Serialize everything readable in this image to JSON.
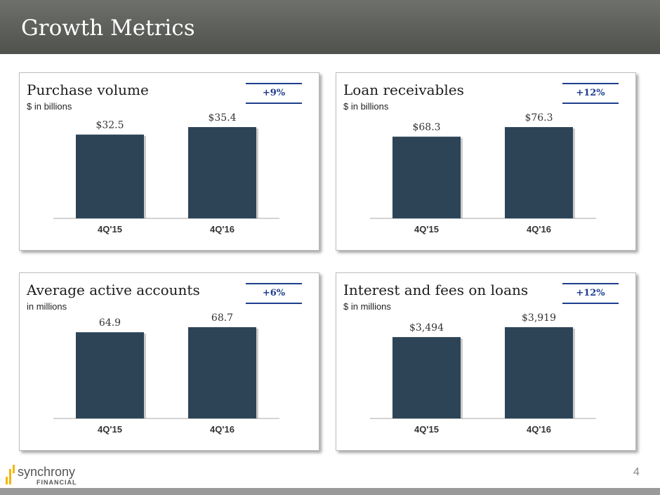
{
  "header": {
    "title": "Growth Metrics"
  },
  "colors": {
    "bar": "#2d4456",
    "badge": "#1f3e8f",
    "axis": "#aaaaaa"
  },
  "footer": {
    "page_number": "4",
    "logo_text": "synchrony",
    "logo_subtext": "FINANCIAL"
  },
  "chart_data": [
    {
      "type": "bar",
      "title": "Purchase volume",
      "subtitle": "$ in billions",
      "change": "+9%",
      "categories": [
        "4Q'15",
        "4Q'16"
      ],
      "values": [
        32.5,
        35.4
      ],
      "labels": [
        "$32.5",
        "$35.4"
      ]
    },
    {
      "type": "bar",
      "title": "Loan receivables",
      "subtitle": "$ in billions",
      "change": "+12%",
      "categories": [
        "4Q'15",
        "4Q'16"
      ],
      "values": [
        68.3,
        76.3
      ],
      "labels": [
        "$68.3",
        "$76.3"
      ]
    },
    {
      "type": "bar",
      "title": "Average active accounts",
      "subtitle": "in millions",
      "change": "+6%",
      "categories": [
        "4Q'15",
        "4Q'16"
      ],
      "values": [
        64.9,
        68.7
      ],
      "labels": [
        "64.9",
        "68.7"
      ]
    },
    {
      "type": "bar",
      "title": "Interest and fees on loans",
      "subtitle": "$ in millions",
      "change": "+12%",
      "categories": [
        "4Q'15",
        "4Q'16"
      ],
      "values": [
        3494,
        3919
      ],
      "labels": [
        "$3,494",
        "$3,919"
      ]
    }
  ]
}
